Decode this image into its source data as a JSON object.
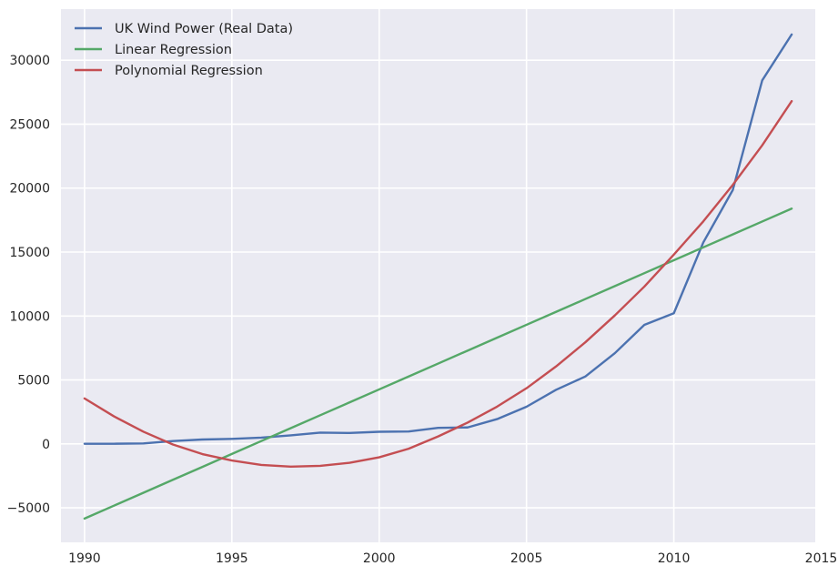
{
  "chart_data": {
    "type": "line",
    "title": "",
    "xlabel": "",
    "ylabel": "",
    "xlim": [
      1989.2,
      2014.8
    ],
    "ylim": [
      -7700,
      34000
    ],
    "xticks": [
      1990,
      1995,
      2000,
      2005,
      2010,
      2015
    ],
    "yticks": [
      -5000,
      0,
      5000,
      10000,
      15000,
      20000,
      25000,
      30000
    ],
    "grid": true,
    "background": "#eaeaf2",
    "legend_position": "top-left",
    "x": [
      1990,
      1991,
      1992,
      1993,
      1994,
      1995,
      1996,
      1997,
      1998,
      1999,
      2000,
      2001,
      2002,
      2003,
      2004,
      2005,
      2006,
      2007,
      2008,
      2009,
      2010,
      2011,
      2012,
      2013,
      2014
    ],
    "series": [
      {
        "name": "UK Wind Power (Real Data)",
        "color": "#4c72b0",
        "values": [
          9,
          10,
          33,
          218,
          342,
          392,
          488,
          665,
          877,
          850,
          947,
          965,
          1256,
          1285,
          1936,
          2904,
          4225,
          5274,
          7097,
          9304,
          10216,
          15750,
          19846,
          28429,
          32016
        ]
      },
      {
        "name": "Linear Regression",
        "color": "#55a868",
        "values": [
          -5840,
          -4830,
          -3820,
          -2810,
          -1800,
          -790,
          220,
          1230,
          2240,
          3250,
          4260,
          5270,
          6280,
          7290,
          8300,
          9310,
          10320,
          11330,
          12340,
          13350,
          14360,
          15370,
          16380,
          17390,
          18400
        ]
      },
      {
        "name": "Polynomial Regression",
        "color": "#c44e52",
        "values": [
          3550,
          2150,
          950,
          -50,
          -800,
          -1300,
          -1650,
          -1780,
          -1720,
          -1480,
          -1050,
          -380,
          580,
          1660,
          2910,
          4350,
          6050,
          7950,
          10050,
          12300,
          14800,
          17400,
          20250,
          23350,
          26800
        ]
      }
    ]
  }
}
